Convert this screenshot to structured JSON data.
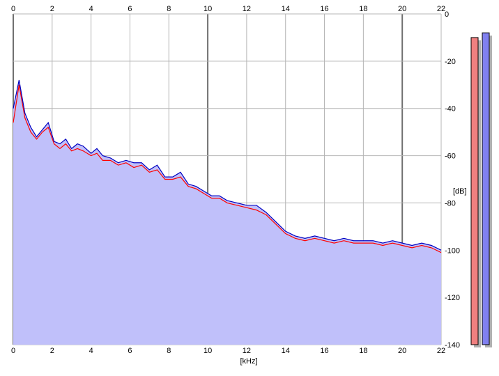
{
  "chart_data": {
    "type": "area",
    "title": "",
    "xlabel": "[kHz]",
    "ylabel": "[dB]",
    "xlim": [
      0,
      22
    ],
    "ylim": [
      -140,
      0
    ],
    "x_ticks": [
      "0",
      "2",
      "4",
      "6",
      "8",
      "10",
      "12",
      "14",
      "16",
      "18",
      "20",
      "22"
    ],
    "y_ticks": [
      "0",
      "-20",
      "-40",
      "-60",
      "-80",
      "-100",
      "-120",
      "-140"
    ],
    "grid": true,
    "fill_color": "#c0c0fa",
    "series": [
      {
        "color": "#ff0000",
        "points": [
          [
            0,
            -46
          ],
          [
            0.3,
            -30
          ],
          [
            0.6,
            -44
          ],
          [
            0.9,
            -50
          ],
          [
            1.2,
            -53
          ],
          [
            1.5,
            -50
          ],
          [
            1.8,
            -48
          ],
          [
            2.1,
            -55
          ],
          [
            2.4,
            -57
          ],
          [
            2.7,
            -55
          ],
          [
            3.0,
            -58
          ],
          [
            3.3,
            -57
          ],
          [
            3.6,
            -58
          ],
          [
            4.0,
            -60
          ],
          [
            4.3,
            -59
          ],
          [
            4.6,
            -62
          ],
          [
            5.0,
            -62
          ],
          [
            5.4,
            -64
          ],
          [
            5.8,
            -63
          ],
          [
            6.2,
            -65
          ],
          [
            6.6,
            -64
          ],
          [
            7.0,
            -67
          ],
          [
            7.4,
            -66
          ],
          [
            7.8,
            -70
          ],
          [
            8.2,
            -70
          ],
          [
            8.6,
            -69
          ],
          [
            9.0,
            -73
          ],
          [
            9.4,
            -74
          ],
          [
            9.8,
            -76
          ],
          [
            10.2,
            -78
          ],
          [
            10.6,
            -78
          ],
          [
            11.0,
            -80
          ],
          [
            11.5,
            -81
          ],
          [
            12.0,
            -82
          ],
          [
            12.5,
            -83
          ],
          [
            13.0,
            -85
          ],
          [
            13.5,
            -89
          ],
          [
            14.0,
            -93
          ],
          [
            14.5,
            -95
          ],
          [
            15.0,
            -96
          ],
          [
            15.5,
            -95
          ],
          [
            16.0,
            -96
          ],
          [
            16.5,
            -97
          ],
          [
            17.0,
            -96
          ],
          [
            17.5,
            -97
          ],
          [
            18.0,
            -97
          ],
          [
            18.5,
            -97
          ],
          [
            19.0,
            -98
          ],
          [
            19.5,
            -97
          ],
          [
            20.0,
            -98
          ],
          [
            20.5,
            -99
          ],
          [
            21.0,
            -98
          ],
          [
            21.5,
            -99
          ],
          [
            22.0,
            -101
          ]
        ]
      },
      {
        "color": "#0000c0",
        "points": [
          [
            0,
            -40
          ],
          [
            0.3,
            -28
          ],
          [
            0.6,
            -42
          ],
          [
            0.9,
            -48
          ],
          [
            1.2,
            -52
          ],
          [
            1.5,
            -49
          ],
          [
            1.8,
            -46
          ],
          [
            2.1,
            -54
          ],
          [
            2.4,
            -55
          ],
          [
            2.7,
            -53
          ],
          [
            3.0,
            -57
          ],
          [
            3.3,
            -55
          ],
          [
            3.6,
            -56
          ],
          [
            4.0,
            -59
          ],
          [
            4.3,
            -57
          ],
          [
            4.6,
            -60
          ],
          [
            5.0,
            -61
          ],
          [
            5.4,
            -63
          ],
          [
            5.8,
            -62
          ],
          [
            6.2,
            -63
          ],
          [
            6.6,
            -63
          ],
          [
            7.0,
            -66
          ],
          [
            7.4,
            -64
          ],
          [
            7.8,
            -69
          ],
          [
            8.2,
            -69
          ],
          [
            8.6,
            -67
          ],
          [
            9.0,
            -72
          ],
          [
            9.4,
            -73
          ],
          [
            9.8,
            -75
          ],
          [
            10.2,
            -77
          ],
          [
            10.6,
            -77
          ],
          [
            11.0,
            -79
          ],
          [
            11.5,
            -80
          ],
          [
            12.0,
            -81
          ],
          [
            12.5,
            -81
          ],
          [
            13.0,
            -84
          ],
          [
            13.5,
            -88
          ],
          [
            14.0,
            -92
          ],
          [
            14.5,
            -94
          ],
          [
            15.0,
            -95
          ],
          [
            15.5,
            -94
          ],
          [
            16.0,
            -95
          ],
          [
            16.5,
            -96
          ],
          [
            17.0,
            -95
          ],
          [
            17.5,
            -96
          ],
          [
            18.0,
            -96
          ],
          [
            18.5,
            -96
          ],
          [
            19.0,
            -97
          ],
          [
            19.5,
            -96
          ],
          [
            20.0,
            -97
          ],
          [
            20.5,
            -98
          ],
          [
            21.0,
            -97
          ],
          [
            21.5,
            -98
          ],
          [
            22.0,
            -100
          ]
        ]
      }
    ],
    "level_meters": [
      {
        "color": "#f08080",
        "level_db": -10
      },
      {
        "color": "#8080f0",
        "level_db": -8
      }
    ]
  }
}
